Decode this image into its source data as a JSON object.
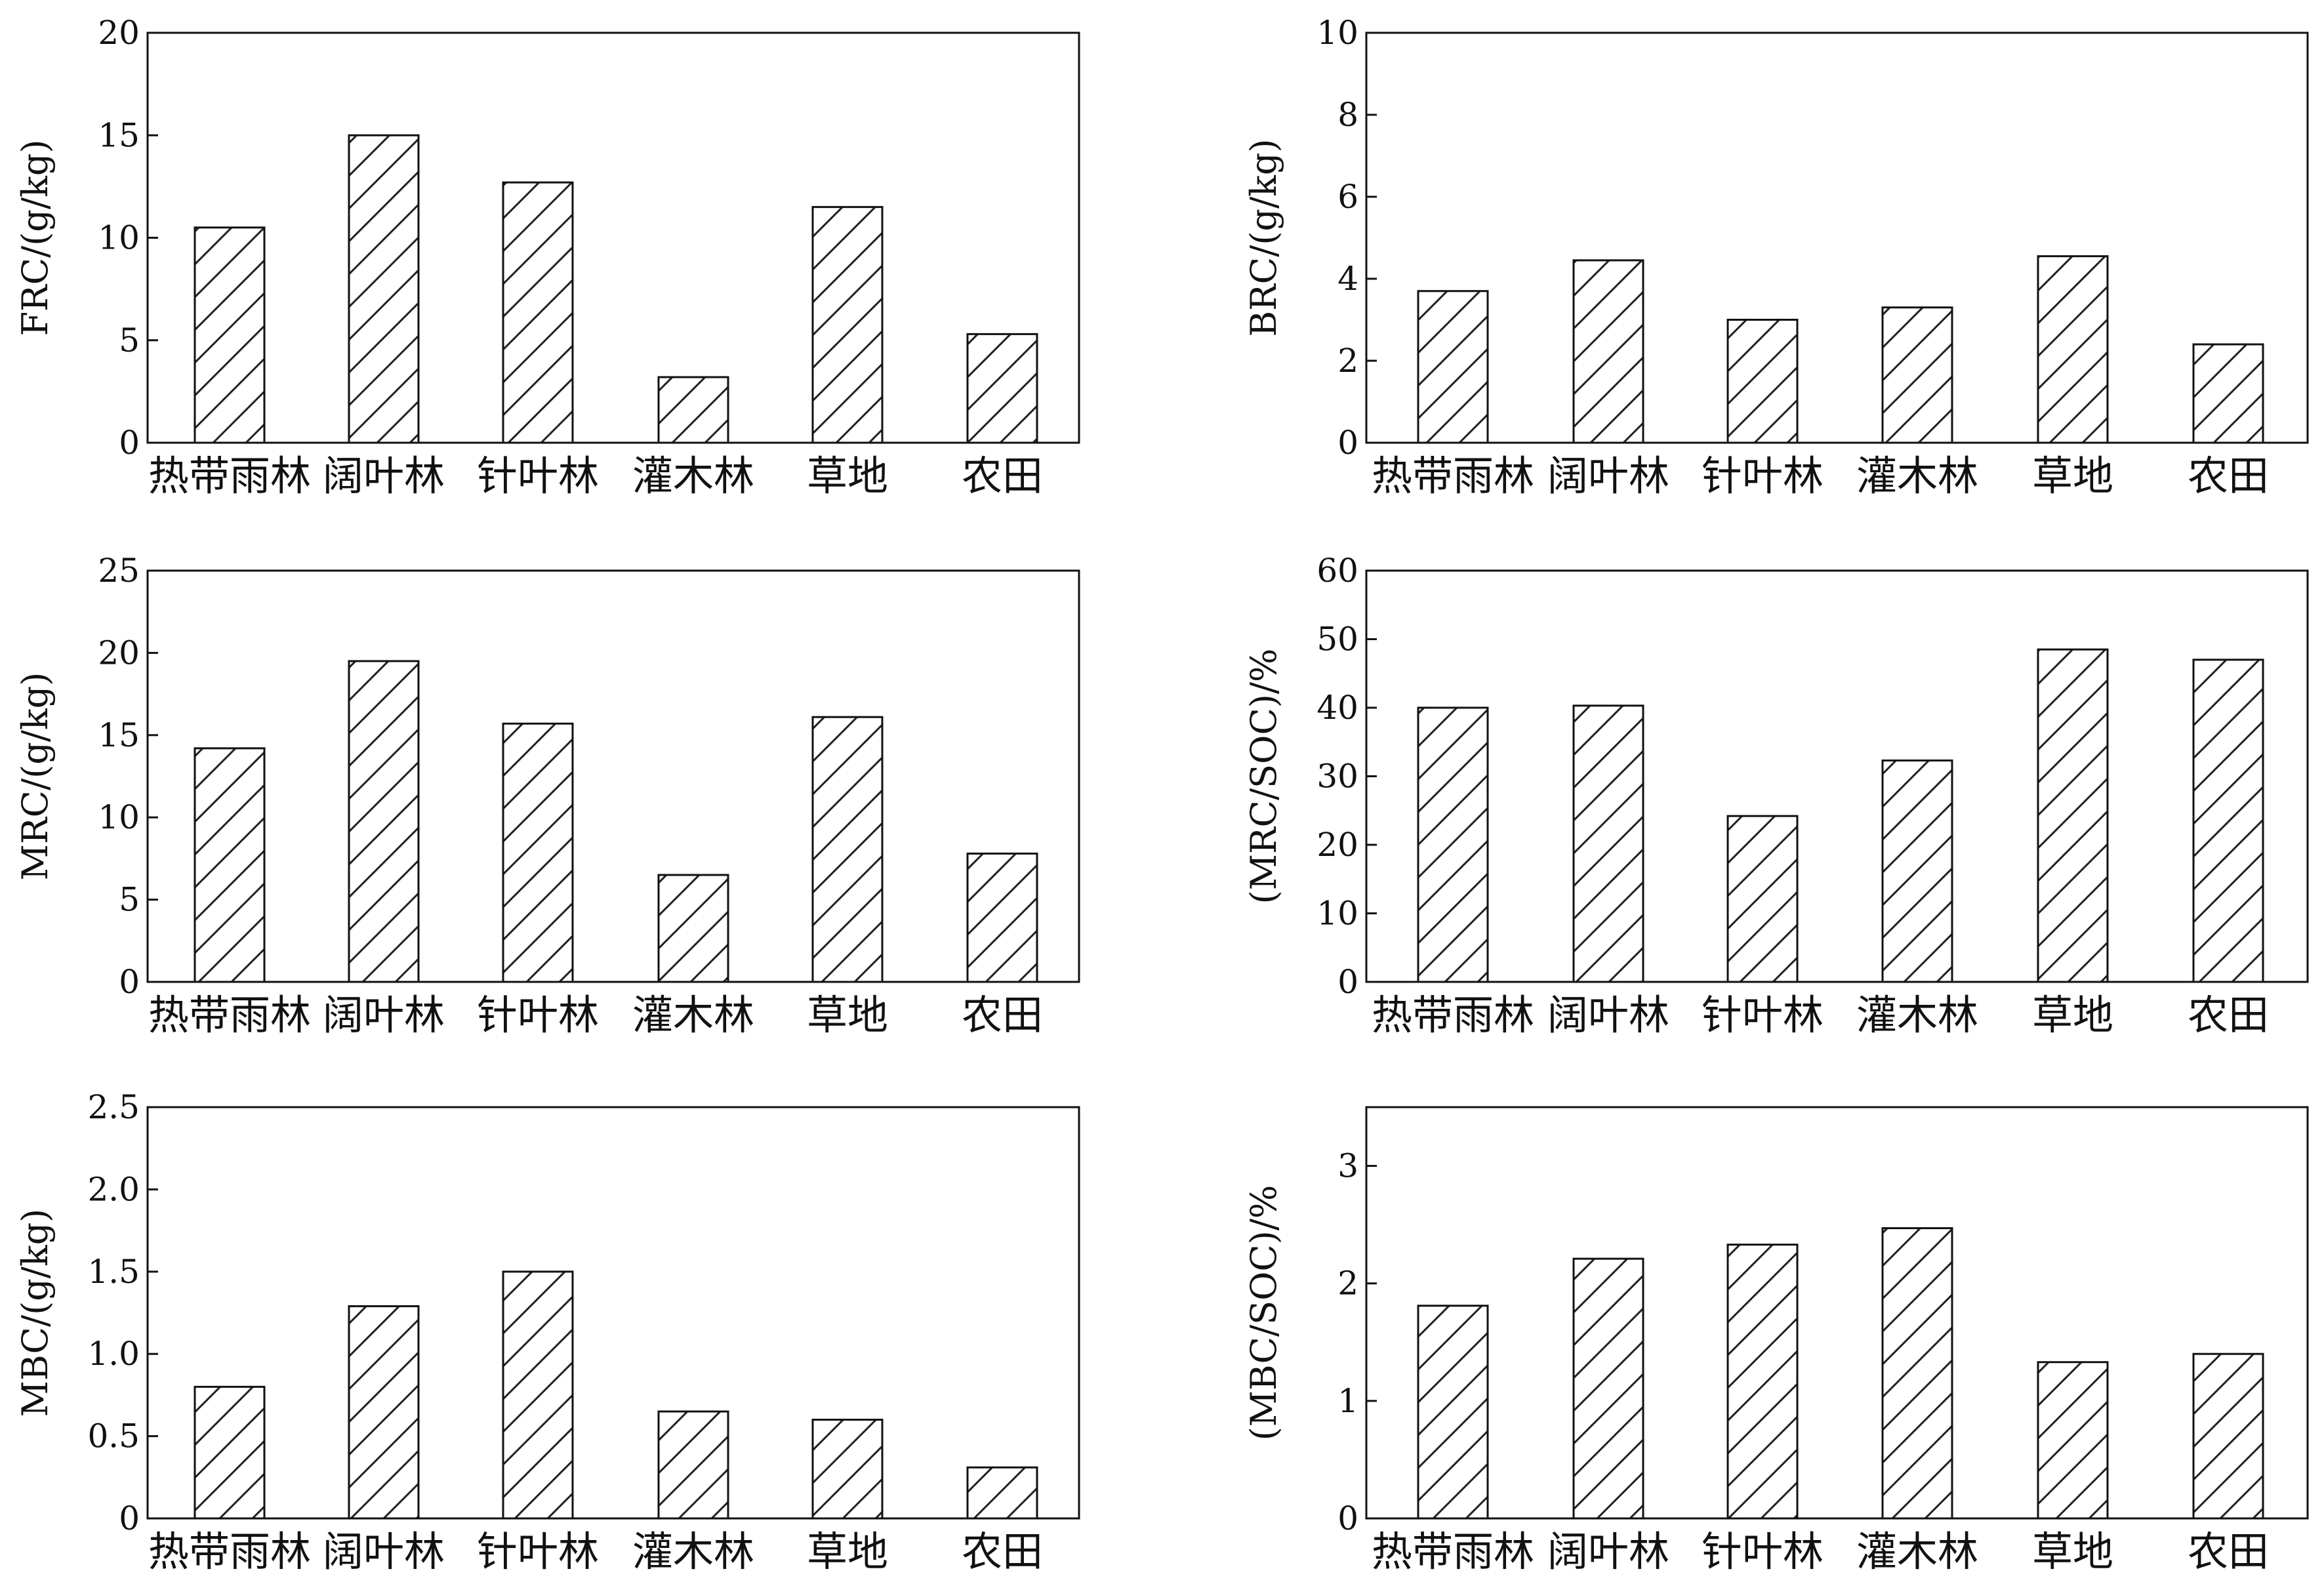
{
  "chart_data": [
    {
      "type": "bar",
      "panel": "FRC",
      "ylabel": "FRC/(g/kg)",
      "categories": [
        "热带雨林",
        "阔叶林",
        "针叶林",
        "灌木林",
        "草地",
        "农田"
      ],
      "values": [
        10.5,
        15.0,
        12.7,
        3.2,
        11.5,
        5.3
      ],
      "ylim": [
        0,
        20
      ],
      "yticks": [
        "0",
        "5",
        "10",
        "15",
        "20"
      ],
      "fill": "hatched",
      "grid": false
    },
    {
      "type": "bar",
      "panel": "BRC",
      "ylabel": "BRC/(g/kg)",
      "categories": [
        "热带雨林",
        "阔叶林",
        "针叶林",
        "灌木林",
        "草地",
        "农田"
      ],
      "values": [
        3.7,
        4.45,
        3.0,
        3.3,
        4.55,
        2.4
      ],
      "ylim": [
        0,
        10
      ],
      "yticks": [
        "0",
        "2",
        "4",
        "6",
        "8",
        "10"
      ],
      "fill": "hatched",
      "grid": false
    },
    {
      "type": "bar",
      "panel": "MRC",
      "ylabel": "MRC/(g/kg)",
      "categories": [
        "热带雨林",
        "阔叶林",
        "针叶林",
        "灌木林",
        "草地",
        "农田"
      ],
      "values": [
        14.2,
        19.5,
        15.7,
        6.5,
        16.1,
        7.8
      ],
      "ylim": [
        0,
        25
      ],
      "yticks": [
        "0",
        "5",
        "10",
        "15",
        "20",
        "25"
      ],
      "fill": "hatched",
      "grid": false
    },
    {
      "type": "bar",
      "panel": "MRC/SOC",
      "ylabel": "(MRC/SOC)/%",
      "categories": [
        "热带雨林",
        "阔叶林",
        "针叶林",
        "灌木林",
        "草地",
        "农田"
      ],
      "values": [
        40.0,
        40.3,
        24.2,
        32.3,
        48.5,
        47.0
      ],
      "ylim": [
        0,
        60
      ],
      "yticks": [
        "0",
        "10",
        "20",
        "30",
        "40",
        "50",
        "60"
      ],
      "fill": "hatched",
      "grid": false
    },
    {
      "type": "bar",
      "panel": "MBC",
      "ylabel": "MBC/(g/kg)",
      "categories": [
        "热带雨林",
        "阔叶林",
        "针叶林",
        "灌木林",
        "草地",
        "农田"
      ],
      "values": [
        0.8,
        1.29,
        1.5,
        0.65,
        0.6,
        0.31
      ],
      "ylim": [
        0,
        2.5
      ],
      "yticks": [
        "0",
        "0.5",
        "1.0",
        "1.5",
        "2.0",
        "2.5"
      ],
      "fill": "hatched",
      "grid": false
    },
    {
      "type": "bar",
      "panel": "MBC/SOC",
      "ylabel": "(MBC/SOC)/%",
      "categories": [
        "热带雨林",
        "阔叶林",
        "针叶林",
        "灌木林",
        "草地",
        "农田"
      ],
      "values": [
        1.81,
        2.21,
        2.33,
        2.47,
        1.33,
        1.4
      ],
      "ylim": [
        0,
        3.5
      ],
      "yticks": [
        "0",
        "1",
        "2",
        "3"
      ],
      "fill": "hatched",
      "grid": false
    }
  ],
  "colors": {
    "bar_fill": "#ffffff",
    "hatch": "#222222",
    "axis": "#111111"
  }
}
